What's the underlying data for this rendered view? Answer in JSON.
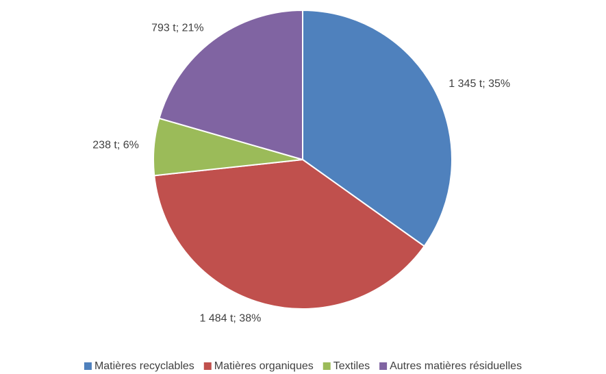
{
  "chart_data": {
    "type": "pie",
    "categories": [
      "Matières recyclables",
      "Matières organiques",
      "Textiles",
      "Autres matières résiduelles"
    ],
    "values": [
      1345,
      1484,
      238,
      793
    ],
    "value_labels": [
      "1 345 t; 35%",
      "1 484 t; 38%",
      "238 t; 6%",
      "793 t; 21%"
    ],
    "colors": [
      "#4f81bd",
      "#c0504d",
      "#9bbb59",
      "#8064a2"
    ],
    "legend": "bottom"
  }
}
